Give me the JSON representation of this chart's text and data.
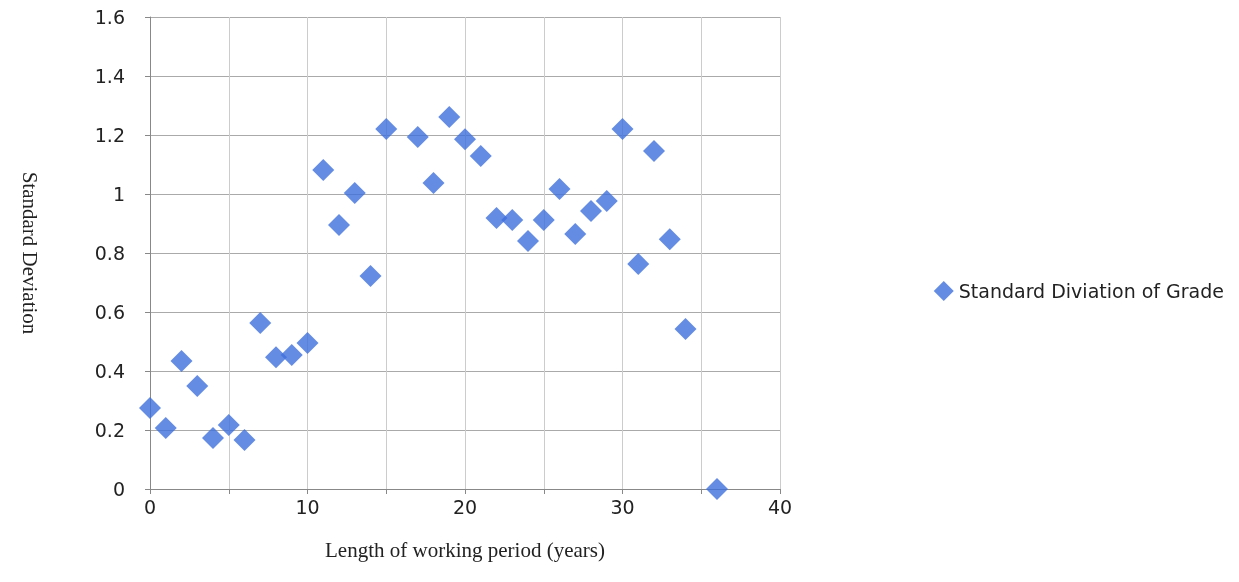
{
  "chart_data": {
    "type": "scatter",
    "xlabel": "Length of working period (years)",
    "ylabel": "Standard Deviation",
    "x": [
      0,
      1,
      2,
      3,
      4,
      5,
      6,
      7,
      8,
      9,
      10,
      11,
      12,
      13,
      14,
      15,
      17,
      18,
      19,
      20,
      21,
      22,
      23,
      24,
      25,
      26,
      27,
      28,
      29,
      30,
      31,
      32,
      33,
      34,
      36
    ],
    "series": [
      {
        "name": "Standard Diviation of Grade",
        "color": "#3f6fdc",
        "values": [
          0.275,
          0.207,
          0.434,
          0.349,
          0.173,
          0.217,
          0.166,
          0.563,
          0.447,
          0.454,
          0.495,
          1.081,
          0.895,
          1.003,
          0.722,
          1.22,
          1.193,
          1.037,
          1.261,
          1.186,
          1.129,
          0.919,
          0.912,
          0.841,
          0.912,
          1.017,
          0.864,
          0.942,
          0.976,
          1.22,
          0.763,
          1.146,
          0.847,
          0.542,
          0
        ]
      }
    ],
    "xlim": [
      0,
      40
    ],
    "xticks": [
      0,
      {
        "value": 5,
        "label": null
      },
      10,
      {
        "value": 15,
        "label": null
      },
      20,
      {
        "value": 25,
        "label": null
      },
      30,
      {
        "value": 35,
        "label": null
      },
      40
    ],
    "ylim": [
      0,
      1.6
    ],
    "yticks": [
      0,
      0.2,
      0.4,
      0.6,
      0.8,
      1,
      1.2,
      1.4,
      1.6
    ],
    "grid": true,
    "legend": "right",
    "marker": "diamond"
  }
}
